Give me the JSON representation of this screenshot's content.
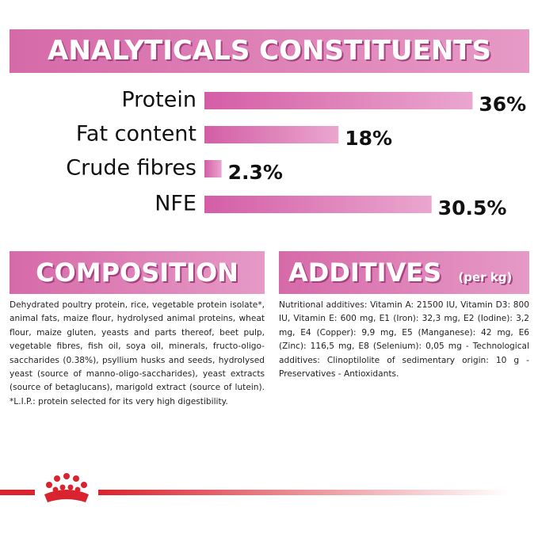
{
  "chart_data": {
    "type": "bar",
    "orientation": "horizontal",
    "title": "ANALYTICALS CONSTITUENTS",
    "categories": [
      "Protein",
      "Fat content",
      "Crude fibres",
      "NFE"
    ],
    "values": [
      36,
      18,
      2.3,
      30.5
    ],
    "value_labels": [
      "36%",
      "18%",
      "2.3%",
      "30.5%"
    ],
    "color": "#d45ea6"
  },
  "composition": {
    "title": "COMPOSITION",
    "text": "Dehydrated poultry protein, rice, vegetable protein isolate*, animal fats, maize flour, hydrolysed animal proteins, wheat flour, maize gluten, yeasts and parts thereof, beet pulp, vegetable fibres, fish oil, soya oil, minerals, fructo-oligo-saccharides (0.38%), psyllium husks and seeds, hydrolysed yeast (source of manno-oligo-saccharides), yeast extracts (source of betaglucans), marigold extract (source of lutein). *L.I.P.: protein selected for its very high digestibility."
  },
  "additives": {
    "title": "ADDITIVES",
    "subtitle": "(per kg)",
    "text": "Nutritional additives: Vitamin A: 21500 IU, Vitamin D3: 800 IU, Vitamin E: 600 mg, E1 (Iron): 32,3 mg, E2 (Iodine): 3,2 mg, E4 (Copper): 9,9 mg, E5 (Manganese): 42 mg, E6 (Zinc): 116,5 mg, E8 (Selenium): 0,05 mg - Technological additives: Clinoptilolite of sedimentary origin: 10 g - Preservatives - Antioxidants."
  }
}
